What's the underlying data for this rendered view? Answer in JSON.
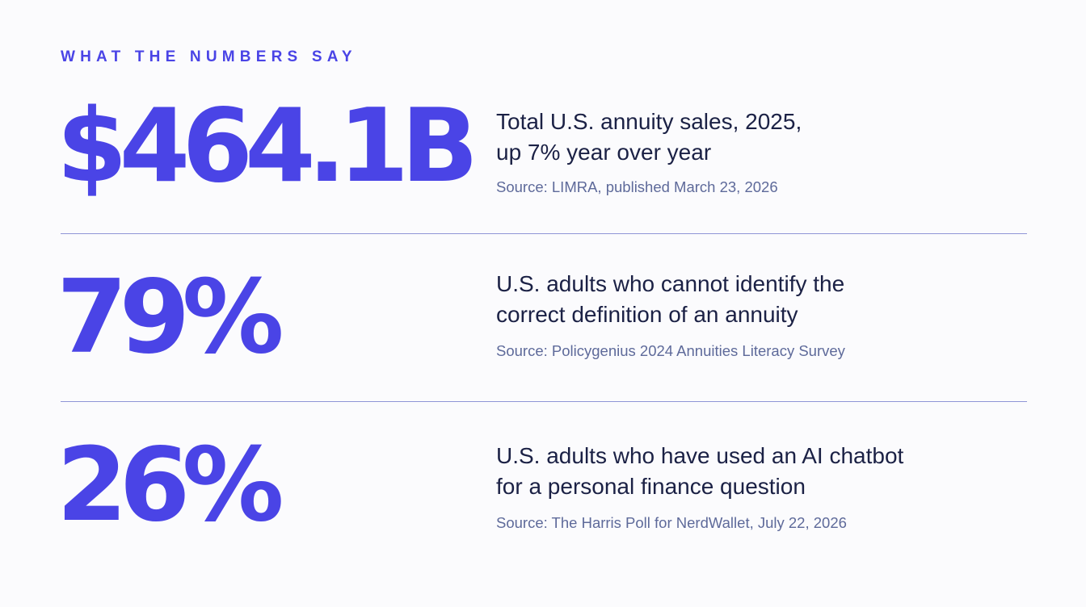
{
  "kicker": "WHAT THE NUMBERS SAY",
  "stats": [
    {
      "value": "$464.1B",
      "description_line1": "Total U.S. annuity sales, 2025,",
      "description_line2": "up 7% year over year",
      "source": "Source: LIMRA, published March 23, 2026"
    },
    {
      "value": "79%",
      "description_line1": "U.S. adults who cannot identify the",
      "description_line2": "correct definition of an annuity",
      "source": "Source: Policygenius 2024 Annuities Literacy Survey"
    },
    {
      "value": "26%",
      "description_line1": "U.S. adults who have used an AI chatbot",
      "description_line2": "for a personal finance question",
      "source": "Source: The Harris Poll for NerdWallet, July 22, 2026"
    }
  ],
  "colors": {
    "accent": "#4a44e6",
    "text": "#1b2145",
    "source": "#5e6a9a",
    "divider": "#8f95d6",
    "background": "#fbfbfd"
  }
}
